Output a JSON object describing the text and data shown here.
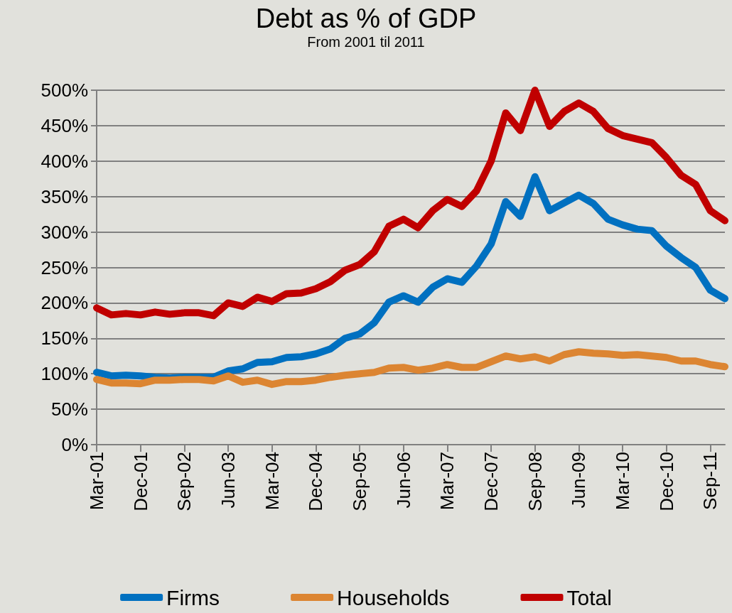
{
  "chart_data": {
    "type": "line",
    "title": "Debt as % of GDP",
    "subtitle": "From 2001 til 2011",
    "categories": [
      "Mar-01",
      null,
      null,
      "Dec-01",
      null,
      null,
      "Sep-02",
      null,
      null,
      "Jun-03",
      null,
      null,
      "Mar-04",
      null,
      null,
      "Dec-04",
      null,
      null,
      "Sep-05",
      null,
      null,
      "Jun-06",
      null,
      null,
      "Mar-07",
      null,
      null,
      "Dec-07",
      null,
      null,
      "Sep-08",
      null,
      null,
      "Jun-09",
      null,
      null,
      "Mar-10",
      null,
      null,
      "Dec-10",
      null,
      null,
      "Sep-11",
      null
    ],
    "series": [
      {
        "name": "Firms",
        "color": "#0070c0",
        "values": [
          102,
          97,
          98,
          97,
          95,
          94,
          95,
          95,
          95,
          104,
          107,
          116,
          117,
          123,
          124,
          128,
          135,
          150,
          156,
          172,
          201,
          210,
          201,
          222,
          234,
          229,
          252,
          283,
          343,
          322,
          378,
          330,
          341,
          352,
          340,
          318,
          310,
          304,
          302,
          280,
          264,
          250,
          218,
          206
        ]
      },
      {
        "name": "Households",
        "color": "#dc8532",
        "values": [
          92,
          87,
          87,
          86,
          91,
          91,
          92,
          92,
          90,
          97,
          88,
          91,
          85,
          89,
          89,
          91,
          95,
          98,
          100,
          102,
          108,
          109,
          105,
          108,
          113,
          109,
          109,
          117,
          125,
          121,
          124,
          118,
          127,
          131,
          129,
          128,
          126,
          127,
          125,
          123,
          118,
          118,
          113,
          110
        ]
      },
      {
        "name": "Total",
        "color": "#c00000",
        "values": [
          193,
          183,
          185,
          183,
          187,
          184,
          186,
          186,
          182,
          200,
          195,
          208,
          202,
          213,
          214,
          220,
          230,
          246,
          254,
          272,
          308,
          318,
          306,
          330,
          346,
          336,
          358,
          400,
          468,
          443,
          500,
          449,
          470,
          482,
          470,
          446,
          436,
          431,
          426,
          405,
          380,
          367,
          330,
          316
        ]
      }
    ],
    "ylim": [
      0,
      500
    ],
    "yticks": [
      {
        "value": 0,
        "label": "0%"
      },
      {
        "value": 50,
        "label": "50%"
      },
      {
        "value": 100,
        "label": "100%"
      },
      {
        "value": 150,
        "label": "150%"
      },
      {
        "value": 200,
        "label": "200%"
      },
      {
        "value": 250,
        "label": "250%"
      },
      {
        "value": 300,
        "label": "300%"
      },
      {
        "value": 350,
        "label": "350%"
      },
      {
        "value": 400,
        "label": "400%"
      },
      {
        "value": 450,
        "label": "450%"
      },
      {
        "value": 500,
        "label": "500%"
      }
    ],
    "grid": "y",
    "legend": "bottom",
    "marker": "none",
    "line_style": "solid"
  }
}
